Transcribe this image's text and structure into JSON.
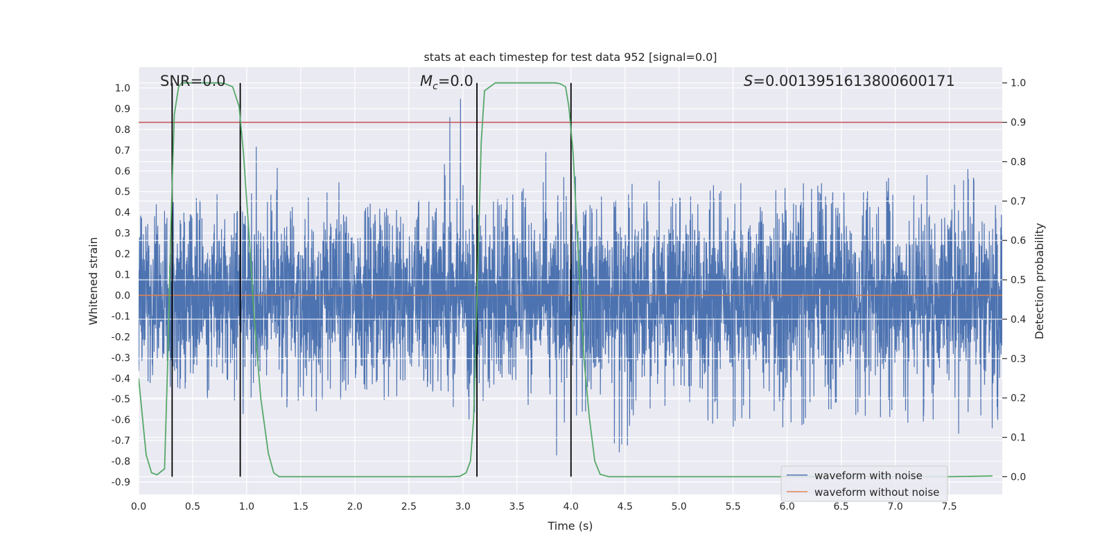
{
  "chart_data": {
    "type": "line",
    "title": "stats at each timestep for test data 952 [signal=0.0]",
    "xlabel": "Time (s)",
    "ylabel": "Whitened strain",
    "ylabel_right": "Detection probability",
    "xlim": [
      0.0,
      7.99
    ],
    "ylim": [
      -0.96,
      1.1
    ],
    "ylim_right": [
      -0.045,
      1.04
    ],
    "x_ticks": [
      "0.0",
      "0.5",
      "1.0",
      "1.5",
      "2.0",
      "2.5",
      "3.0",
      "3.5",
      "4.0",
      "4.5",
      "5.0",
      "5.5",
      "6.0",
      "6.5",
      "7.0",
      "7.5"
    ],
    "y_ticks": [
      "1.0",
      "0.9",
      "0.8",
      "0.7",
      "0.6",
      "0.5",
      "0.4",
      "0.3",
      "0.2",
      "0.1",
      "0.0",
      "-0.1",
      "-0.2",
      "-0.3",
      "-0.4",
      "-0.5",
      "-0.6",
      "-0.7",
      "-0.8",
      "-0.9"
    ],
    "y_ticks_right": [
      "1.0",
      "0.9",
      "0.8",
      "0.7",
      "0.6",
      "0.5",
      "0.4",
      "0.3",
      "0.2",
      "0.1",
      "0.0"
    ],
    "grid": true,
    "legend_position": "bottom-right",
    "annotations": {
      "snr": "SNR=0.0",
      "mc_symbol": "M",
      "mc_sub": "c",
      "mc_value": "=0.0",
      "s_symbol": "S",
      "s_value": "=0.0013951613800600171"
    },
    "series": [
      {
        "name": "waveform with noise",
        "color": "#4c72b0",
        "envelope_x": [
          0.0,
          0.1,
          0.2,
          0.3,
          0.4,
          0.5,
          0.6,
          0.7,
          0.8,
          0.9,
          1.0,
          1.1,
          1.2,
          1.3,
          1.4,
          1.5,
          1.6,
          1.7,
          1.8,
          1.9,
          2.0,
          2.1,
          2.2,
          2.3,
          2.4,
          2.5,
          2.6,
          2.7,
          2.8,
          2.9,
          3.0,
          3.1,
          3.2,
          3.3,
          3.4,
          3.5,
          3.6,
          3.7,
          3.8,
          3.9,
          4.0,
          4.1,
          4.2,
          4.3,
          4.4,
          4.5,
          4.6,
          4.7,
          4.8,
          4.9,
          5.0,
          5.1,
          5.2,
          5.3,
          5.4,
          5.5,
          5.6,
          5.7,
          5.8,
          5.9,
          6.0,
          6.1,
          6.2,
          6.3,
          6.4,
          6.5,
          6.6,
          6.7,
          6.8,
          6.9,
          7.0,
          7.1,
          7.2,
          7.3,
          7.4,
          7.5,
          7.6,
          7.7,
          7.8,
          7.9
        ],
        "envelope_max": [
          0.45,
          0.45,
          0.52,
          0.48,
          0.38,
          0.48,
          0.46,
          0.45,
          0.6,
          0.45,
          0.43,
          0.77,
          0.55,
          0.63,
          0.45,
          0.42,
          0.5,
          0.48,
          0.79,
          0.45,
          0.28,
          0.42,
          0.48,
          0.45,
          0.47,
          0.46,
          0.55,
          0.52,
          0.49,
          1.0,
          0.97,
          0.45,
          0.42,
          0.58,
          0.5,
          0.52,
          0.62,
          0.55,
          0.79,
          0.55,
          0.72,
          0.45,
          0.43,
          0.5,
          0.46,
          0.52,
          0.55,
          0.45,
          0.58,
          0.52,
          0.48,
          0.58,
          0.56,
          0.62,
          0.5,
          0.55,
          0.61,
          0.56,
          0.52,
          0.58,
          0.6,
          0.53,
          0.58,
          0.55,
          0.55,
          0.56,
          0.75,
          0.6,
          0.5,
          0.58,
          0.55,
          0.57,
          0.52,
          0.6,
          0.6,
          0.6,
          0.6,
          0.62,
          0.76,
          0.55
        ],
        "envelope_min": [
          -0.38,
          -0.42,
          -0.46,
          -0.44,
          -0.52,
          -0.62,
          -0.5,
          -0.55,
          -0.5,
          -0.62,
          -0.65,
          -0.58,
          -0.52,
          -0.55,
          -0.62,
          -0.6,
          -0.62,
          -0.6,
          -0.61,
          -0.52,
          -0.48,
          -0.45,
          -0.55,
          -0.52,
          -0.5,
          -0.54,
          -0.52,
          -0.56,
          -0.5,
          -0.55,
          -0.6,
          -0.62,
          -0.5,
          -0.56,
          -0.5,
          -0.58,
          -0.6,
          -0.86,
          -0.6,
          -0.86,
          -0.62,
          -0.58,
          -0.56,
          -0.52,
          -0.72,
          -0.82,
          -0.6,
          -0.62,
          -0.58,
          -0.55,
          -0.6,
          -0.56,
          -0.58,
          -0.65,
          -0.6,
          -0.66,
          -0.6,
          -0.62,
          -0.58,
          -0.62,
          -0.68,
          -0.66,
          -0.6,
          -0.68,
          -0.6,
          -0.6,
          -0.62,
          -0.64,
          -0.6,
          -0.6,
          -0.65,
          -0.62,
          -0.64,
          -0.62,
          -0.66,
          -0.6,
          -0.72,
          -0.62,
          -0.78,
          -0.65
        ]
      },
      {
        "name": "waveform without noise",
        "color": "#dd8452",
        "x": [
          0.0,
          7.99
        ],
        "values": [
          0.0,
          0.0
        ]
      },
      {
        "name": "",
        "axis": "right",
        "color": "#55a868",
        "x": [
          0.0,
          0.07,
          0.12,
          0.17,
          0.24,
          0.27,
          0.3,
          0.33,
          0.37,
          0.4,
          0.45,
          0.55,
          0.65,
          0.75,
          0.8,
          0.87,
          0.93,
          0.97,
          1.02,
          1.07,
          1.13,
          1.2,
          1.25,
          1.3,
          1.5,
          2.0,
          2.5,
          2.9,
          2.97,
          3.03,
          3.07,
          3.1,
          3.13,
          3.17,
          3.2,
          3.3,
          3.5,
          3.7,
          3.85,
          3.9,
          3.95,
          3.98,
          4.02,
          4.07,
          4.12,
          4.17,
          4.22,
          4.27,
          4.35,
          5.0,
          6.0,
          7.0,
          7.5,
          7.9
        ],
        "values": [
          0.25,
          0.055,
          0.01,
          0.005,
          0.02,
          0.3,
          0.65,
          0.92,
          0.99,
          1.0,
          1.0,
          1.0,
          1.0,
          1.0,
          0.998,
          0.99,
          0.94,
          0.82,
          0.62,
          0.4,
          0.2,
          0.06,
          0.01,
          0.0,
          0.0,
          0.0,
          0.0,
          0.0,
          0.001,
          0.01,
          0.04,
          0.15,
          0.45,
          0.85,
          0.98,
          1.0,
          1.0,
          1.0,
          1.0,
          0.998,
          0.99,
          0.94,
          0.82,
          0.55,
          0.3,
          0.15,
          0.04,
          0.006,
          0.0,
          0.0,
          0.0,
          0.0,
          0.0,
          0.002
        ]
      },
      {
        "name": "",
        "axis": "right",
        "color": "#c44e52",
        "x": [
          0.0,
          7.99
        ],
        "values": [
          0.9,
          0.9
        ]
      }
    ],
    "vertical_lines_x": [
      0.31,
      0.94,
      3.13,
      4.0
    ]
  }
}
